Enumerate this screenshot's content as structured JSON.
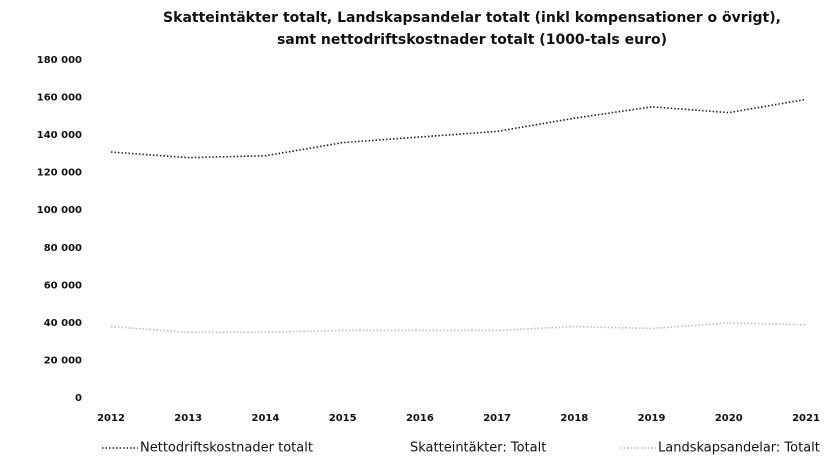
{
  "chart_data": {
    "type": "line",
    "title": "Skatteintäkter totalt, Landskapsandelar totalt (inkl kompensationer o övrigt),",
    "subtitle": "samt nettodriftskostnader totalt (1000-tals euro)",
    "categories": [
      "2012",
      "2013",
      "2014",
      "2015",
      "2016",
      "2017",
      "2018",
      "2019",
      "2020",
      "2021"
    ],
    "series": [
      {
        "name": "Nettodriftskostnader totalt",
        "color": "#222222",
        "values": [
          131000,
          128000,
          129000,
          136000,
          139000,
          142000,
          149000,
          155000,
          152000,
          159000
        ]
      },
      {
        "name": "Skatteintäkter: Totalt",
        "color": "#ffffff",
        "values": [
          null,
          null,
          null,
          null,
          null,
          null,
          null,
          null,
          null,
          null
        ]
      },
      {
        "name": "Landskapsandelar: Totalt",
        "color": "#bbbbbb",
        "values": [
          38000,
          35000,
          35000,
          36000,
          36000,
          36000,
          38000,
          37000,
          40000,
          39000
        ]
      }
    ],
    "ylim": [
      0,
      180000
    ],
    "yticks": [
      0,
      {
        "value": 20000,
        "label": "20 000"
      },
      {
        "value": 40000,
        "label": "40 000"
      },
      {
        "value": 60000,
        "label": "60 000"
      },
      {
        "value": 80000,
        "label": "80 000"
      },
      {
        "value": 100000,
        "label": "100 000"
      },
      {
        "value": 120000,
        "label": "120 000"
      },
      {
        "value": 140000,
        "label": "140 000"
      },
      {
        "value": 160000,
        "label": "160 000"
      },
      {
        "value": 180000,
        "label": "180 000"
      }
    ],
    "grid": false,
    "legend": "bottom"
  }
}
